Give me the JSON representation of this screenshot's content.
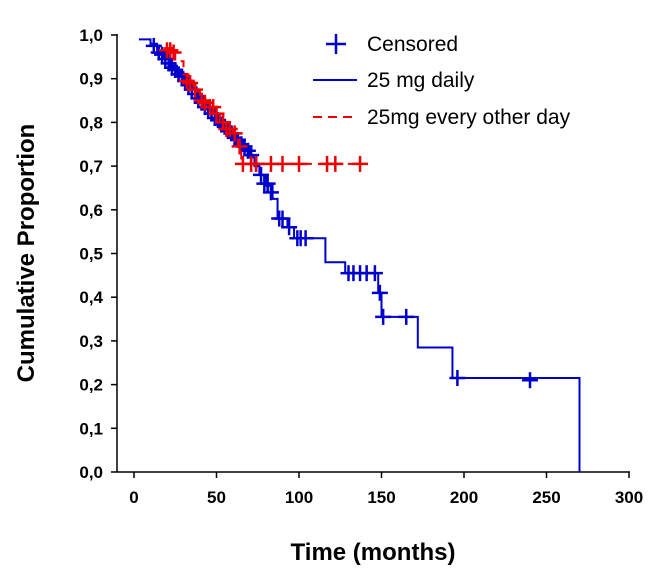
{
  "chart_data": {
    "type": "line",
    "xlabel": "Time (months)",
    "ylabel": "Cumulative Proportion",
    "xlim": [
      -10,
      300
    ],
    "ylim": [
      0,
      1.0
    ],
    "xticks": [
      0,
      50,
      100,
      150,
      200,
      250,
      300
    ],
    "yticks": [
      0.0,
      0.1,
      0.2,
      0.3,
      0.4,
      0.5,
      0.6,
      0.7,
      0.8,
      0.9,
      1.0
    ],
    "ytick_labels": [
      "0,0",
      "0,1",
      "0,2",
      "0,3",
      "0,4",
      "0,5",
      "0,6",
      "0,7",
      "0,8",
      "0,9",
      "1,0"
    ],
    "legend_position": "top-right",
    "legend": {
      "censored": "Censored",
      "series_a": "25 mg daily",
      "series_b": "25mg every other day"
    },
    "colors": {
      "series_a": "#0000cc",
      "series_b": "#ee0000"
    },
    "series": [
      {
        "name": "25 mg daily",
        "color": "#0000cc",
        "style": "solid",
        "steps": [
          [
            3,
            0.99
          ],
          [
            10,
            0.98
          ],
          [
            14,
            0.965
          ],
          [
            18,
            0.95
          ],
          [
            22,
            0.93
          ],
          [
            26,
            0.915
          ],
          [
            30,
            0.9
          ],
          [
            34,
            0.88
          ],
          [
            38,
            0.86
          ],
          [
            42,
            0.84
          ],
          [
            46,
            0.82
          ],
          [
            50,
            0.8
          ],
          [
            54,
            0.785
          ],
          [
            58,
            0.77
          ],
          [
            62,
            0.755
          ],
          [
            66,
            0.74
          ],
          [
            70,
            0.72
          ],
          [
            73,
            0.7
          ],
          [
            76,
            0.68
          ],
          [
            80,
            0.655
          ],
          [
            84,
            0.625
          ],
          [
            87,
            0.58
          ],
          [
            93,
            0.56
          ],
          [
            97,
            0.535
          ],
          [
            116,
            0.48
          ],
          [
            128,
            0.455
          ],
          [
            148,
            0.41
          ],
          [
            150,
            0.355
          ],
          [
            172,
            0.285
          ],
          [
            193,
            0.215
          ],
          [
            270,
            0.0
          ]
        ],
        "end_x": 270,
        "censored": [
          [
            12,
            0.975
          ],
          [
            15,
            0.96
          ],
          [
            17,
            0.955
          ],
          [
            19,
            0.945
          ],
          [
            21,
            0.935
          ],
          [
            23,
            0.925
          ],
          [
            25,
            0.92
          ],
          [
            27,
            0.91
          ],
          [
            29,
            0.905
          ],
          [
            31,
            0.895
          ],
          [
            33,
            0.885
          ],
          [
            35,
            0.875
          ],
          [
            37,
            0.865
          ],
          [
            39,
            0.855
          ],
          [
            41,
            0.845
          ],
          [
            43,
            0.835
          ],
          [
            45,
            0.83
          ],
          [
            47,
            0.82
          ],
          [
            49,
            0.81
          ],
          [
            51,
            0.805
          ],
          [
            53,
            0.795
          ],
          [
            55,
            0.79
          ],
          [
            57,
            0.78
          ],
          [
            59,
            0.775
          ],
          [
            61,
            0.765
          ],
          [
            63,
            0.76
          ],
          [
            65,
            0.75
          ],
          [
            67,
            0.745
          ],
          [
            69,
            0.735
          ],
          [
            71,
            0.725
          ],
          [
            74,
            0.705
          ],
          [
            77,
            0.68
          ],
          [
            79,
            0.66
          ],
          [
            81,
            0.66
          ],
          [
            83,
            0.64
          ],
          [
            88,
            0.58
          ],
          [
            90,
            0.58
          ],
          [
            94,
            0.56
          ],
          [
            99,
            0.535
          ],
          [
            101,
            0.535
          ],
          [
            104,
            0.535
          ],
          [
            130,
            0.455
          ],
          [
            133,
            0.455
          ],
          [
            137,
            0.455
          ],
          [
            141,
            0.455
          ],
          [
            146,
            0.455
          ],
          [
            149,
            0.41
          ],
          [
            151,
            0.355
          ],
          [
            165,
            0.355
          ],
          [
            196,
            0.215
          ],
          [
            240,
            0.21
          ]
        ]
      },
      {
        "name": "25mg every other day",
        "color": "#ee0000",
        "style": "dashed",
        "steps": [
          [
            18,
            0.97
          ],
          [
            25,
            0.94
          ],
          [
            30,
            0.91
          ],
          [
            33,
            0.89
          ],
          [
            36,
            0.87
          ],
          [
            40,
            0.85
          ],
          [
            44,
            0.835
          ],
          [
            48,
            0.82
          ],
          [
            52,
            0.8
          ],
          [
            56,
            0.785
          ],
          [
            60,
            0.775
          ],
          [
            63,
            0.745
          ],
          [
            65,
            0.705
          ]
        ],
        "end_x": 137,
        "censored": [
          [
            20,
            0.965
          ],
          [
            22,
            0.965
          ],
          [
            24,
            0.96
          ],
          [
            32,
            0.895
          ],
          [
            34,
            0.89
          ],
          [
            37,
            0.875
          ],
          [
            41,
            0.85
          ],
          [
            43,
            0.845
          ],
          [
            46,
            0.835
          ],
          [
            48,
            0.835
          ],
          [
            50,
            0.82
          ],
          [
            54,
            0.8
          ],
          [
            56,
            0.785
          ],
          [
            58,
            0.785
          ],
          [
            61,
            0.775
          ],
          [
            64,
            0.745
          ],
          [
            66,
            0.705
          ],
          [
            71,
            0.705
          ],
          [
            74,
            0.705
          ],
          [
            83,
            0.705
          ],
          [
            90,
            0.705
          ],
          [
            100,
            0.705
          ],
          [
            117,
            0.705
          ],
          [
            122,
            0.705
          ],
          [
            137,
            0.705
          ]
        ]
      }
    ]
  }
}
